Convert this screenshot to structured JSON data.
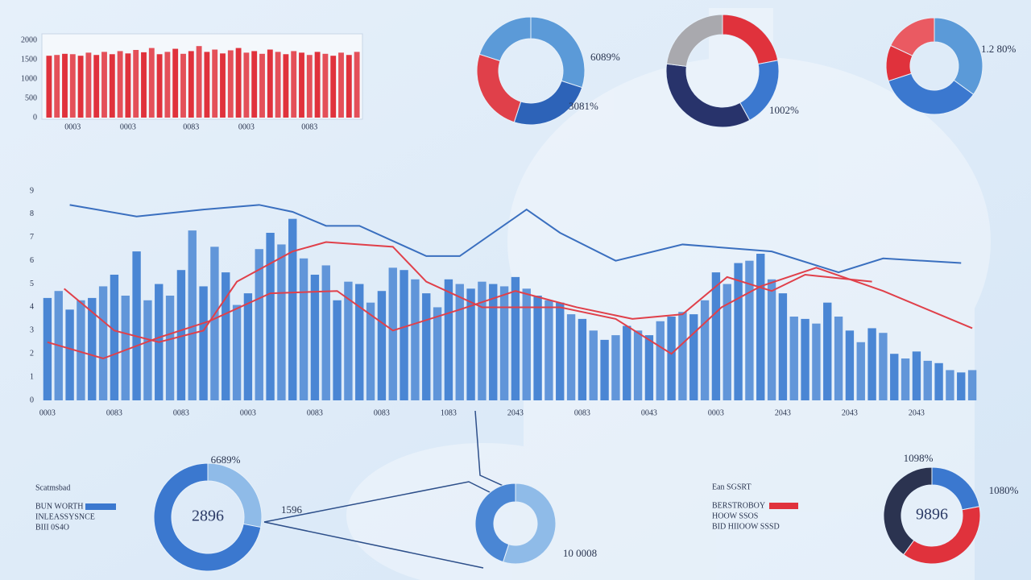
{
  "chart_data": [
    {
      "type": "bar",
      "color": "#e0323c",
      "categories": [
        null,
        null,
        null,
        "0003",
        null,
        null,
        null,
        null,
        null,
        null,
        "0003",
        null,
        null,
        null,
        null,
        null,
        null,
        null,
        "0083",
        null,
        null,
        null,
        null,
        null,
        null,
        "0003",
        null,
        null,
        null,
        null,
        null,
        null,
        null,
        "0083",
        null,
        null,
        null,
        null,
        null,
        null
      ],
      "values": [
        1600,
        1620,
        1650,
        1640,
        1600,
        1680,
        1620,
        1700,
        1640,
        1720,
        1660,
        1750,
        1690,
        1800,
        1640,
        1700,
        1780,
        1650,
        1720,
        1850,
        1700,
        1760,
        1660,
        1740,
        1800,
        1680,
        1720,
        1650,
        1760,
        1700,
        1640,
        1720,
        1680,
        1620,
        1700,
        1650,
        1600,
        1680,
        1620,
        1700
      ],
      "ylim": [
        0,
        2000
      ],
      "yticks": [
        0,
        500,
        1000,
        1500,
        2000
      ]
    },
    {
      "type": "bar",
      "color": "#4a86d4",
      "categories": [
        "0003",
        null,
        null,
        null,
        null,
        null,
        "0083",
        null,
        null,
        null,
        null,
        null,
        "0083",
        null,
        null,
        null,
        null,
        null,
        "0003",
        null,
        null,
        null,
        null,
        null,
        "0083",
        null,
        null,
        null,
        null,
        null,
        "0083",
        null,
        null,
        null,
        null,
        null,
        "1083",
        null,
        null,
        null,
        null,
        null,
        "2043",
        null,
        null,
        null,
        null,
        null,
        "0083",
        null,
        null,
        null,
        null,
        null,
        "0043",
        null,
        null,
        null,
        null,
        null,
        "0003",
        null,
        null,
        null,
        null,
        null,
        "2043",
        null,
        null,
        null,
        null,
        null,
        "2043",
        null,
        null,
        null,
        null,
        null,
        "2043",
        null,
        null,
        null,
        null,
        null
      ],
      "values": [
        4.4,
        4.7,
        3.9,
        4.3,
        4.4,
        4.9,
        5.4,
        4.5,
        6.4,
        4.3,
        5.0,
        4.5,
        5.6,
        7.3,
        4.9,
        6.6,
        5.5,
        4.1,
        4.6,
        6.5,
        7.2,
        6.7,
        7.8,
        6.1,
        5.4,
        5.8,
        4.3,
        5.1,
        5.0,
        4.2,
        4.7,
        5.7,
        5.6,
        5.2,
        4.6,
        4.0,
        5.2,
        5.0,
        4.8,
        5.1,
        5.0,
        4.9,
        5.3,
        4.8,
        4.5,
        4.3,
        4.2,
        3.7,
        3.5,
        3.0,
        2.6,
        2.8,
        3.2,
        3.0,
        2.8,
        3.4,
        3.6,
        3.8,
        3.7,
        4.3,
        5.5,
        5.0,
        5.9,
        6.0,
        6.3,
        5.2,
        4.6,
        3.6,
        3.5,
        3.3,
        4.2,
        3.6,
        3.0,
        2.5,
        3.1,
        2.9,
        2.0,
        1.8,
        2.1,
        1.7,
        1.6,
        1.3,
        1.2,
        1.3
      ],
      "ylim": [
        0,
        9
      ],
      "yticks": [
        0,
        1,
        2,
        3,
        4,
        5,
        6,
        7,
        8,
        9
      ]
    },
    {
      "type": "line",
      "xlim": [
        0,
        83
      ],
      "ylim": [
        0,
        9
      ],
      "series": [
        {
          "color": "#3a6fbf",
          "x": [
            2,
            8,
            14,
            19,
            22,
            25,
            28,
            34,
            37,
            43,
            46,
            51,
            57,
            65,
            71,
            75,
            82
          ],
          "values": [
            8.4,
            7.9,
            8.2,
            8.4,
            8.1,
            7.5,
            7.5,
            6.2,
            6.2,
            8.2,
            7.2,
            6.0,
            6.7,
            6.4,
            5.5,
            6.1,
            5.9
          ]
        },
        {
          "color": "#e0404a",
          "x": [
            1.5,
            6,
            10,
            14,
            17,
            22,
            25,
            31,
            34,
            39,
            46,
            51,
            56,
            60.5,
            64,
            69,
            75,
            83
          ],
          "values": [
            4.8,
            3.0,
            2.5,
            3.0,
            5.1,
            6.4,
            6.8,
            6.6,
            5.1,
            4.0,
            4.0,
            3.5,
            2.0,
            4.0,
            4.9,
            5.7,
            4.7,
            3.1
          ]
        },
        {
          "color": "#e0404a",
          "x": [
            0,
            5,
            10,
            14.5,
            20,
            26,
            31,
            37,
            42,
            47.5,
            52.5,
            57,
            61,
            65,
            68,
            74
          ],
          "values": [
            2.5,
            1.8,
            2.7,
            3.4,
            4.6,
            4.7,
            3.0,
            3.9,
            4.7,
            4.0,
            3.5,
            3.7,
            5.3,
            4.7,
            5.4,
            5.1
          ]
        }
      ]
    },
    {
      "type": "pie",
      "values": [
        30,
        25,
        25,
        20
      ],
      "colors": [
        "#5b9ad8",
        "#2d63b8",
        "#e0404a",
        "#5b9ad8"
      ],
      "annotations": [
        "6089%",
        "3081%"
      ]
    },
    {
      "type": "pie",
      "values": [
        22,
        20,
        35,
        23
      ],
      "colors": [
        "#e0323c",
        "#3b78cf",
        "#28336b",
        "#a9a9ae"
      ],
      "annotations": [
        "1002%"
      ]
    },
    {
      "type": "pie",
      "values": [
        35,
        35,
        12,
        18
      ],
      "colors": [
        "#5b9ad8",
        "#3b78cf",
        "#e0323c",
        "#ea5a62"
      ],
      "annotations": [
        "1.2 80%"
      ]
    },
    {
      "type": "pie",
      "values": [
        28,
        72
      ],
      "colors": [
        "#8fbbe8",
        "#3b78cf"
      ],
      "center_label": "2896",
      "annotations": [
        "6689%",
        "1596"
      ]
    },
    {
      "type": "pie",
      "values": [
        55,
        45
      ],
      "colors": [
        "#8fbbe8",
        "#4a86d4"
      ],
      "annotations": [
        "10 0008"
      ]
    },
    {
      "type": "pie",
      "values": [
        22,
        38,
        40
      ],
      "colors": [
        "#3b78cf",
        "#e0323c",
        "#2b3350"
      ],
      "center_label": "9896",
      "annotations": [
        "1098%",
        "1080%"
      ]
    }
  ],
  "legends": [
    {
      "title": "Scatmsbad",
      "items": [
        {
          "name": "BUN WORTH",
          "color": "#3b78cf"
        },
        {
          "name": "INLEASSYSNCE",
          "color": "#e0323c"
        },
        {
          "name": "BIII 0S4O",
          "color": "#2b3350"
        }
      ]
    },
    {
      "title": "Ean SGSRT",
      "items": [
        {
          "name": "BERSTROBOY",
          "color": "#e0323c"
        },
        {
          "name": "HOOW SSOS",
          "color": "#3b78cf"
        },
        {
          "name": "BID HIIOOW SSSD",
          "color": "#2b3350"
        }
      ]
    }
  ]
}
